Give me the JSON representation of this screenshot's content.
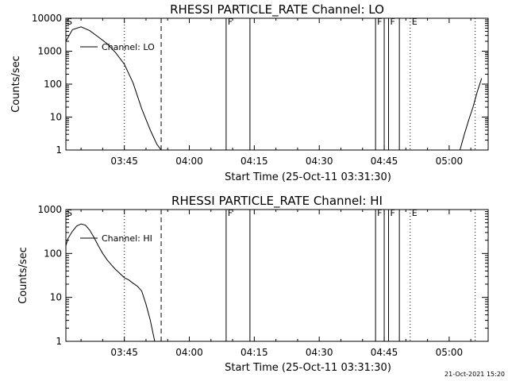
{
  "timestamp": "21-Oct-2021 15:20",
  "chart_data": [
    {
      "type": "line",
      "title": "RHESSI PARTICLE_RATE Channel: LO",
      "xlabel": "Start Time (25-Oct-11 03:31:30)",
      "ylabel": "Counts/sec",
      "yscale": "log",
      "xlim": [
        "03:31:30",
        "05:09:00"
      ],
      "ylim": [
        1,
        10000
      ],
      "x_ticks": [
        "03:45",
        "04:00",
        "04:15",
        "04:30",
        "04:45",
        "05:00"
      ],
      "y_ticks": [
        "1",
        "10",
        "100",
        "1000",
        "10000"
      ],
      "legend": {
        "label": "Channel: LO",
        "position": "top-left"
      },
      "series": [
        {
          "name": "Channel: LO",
          "segments": [
            {
              "x": [
                "03:31:30",
                "03:33:00",
                "03:35:00",
                "03:37:00",
                "03:39:00",
                "03:41:00",
                "03:43:00",
                "03:45:00",
                "03:47:00",
                "03:49:00",
                "03:51:00",
                "03:52:30",
                "03:53:30"
              ],
              "y": [
                2000,
                4500,
                5500,
                4200,
                2700,
                1700,
                900,
                400,
                110,
                18,
                4,
                1.5,
                1
              ]
            },
            {
              "x": [
                "05:02:30",
                "05:03:30",
                "05:04:30",
                "05:05:30",
                "05:06:30",
                "05:07:30"
              ],
              "y": [
                1,
                3,
                8,
                20,
                60,
                150
              ]
            }
          ]
        }
      ],
      "vlines": [
        {
          "time": "03:45:00",
          "style": "dotted",
          "label": ""
        },
        {
          "time": "03:53:30",
          "style": "dashed",
          "label": ""
        },
        {
          "time": "04:08:30",
          "style": "solid",
          "label": "F"
        },
        {
          "time": "04:14:00",
          "style": "solid",
          "label": ""
        },
        {
          "time": "04:43:00",
          "style": "solid",
          "label": "F"
        },
        {
          "time": "04:45:00",
          "style": "solid",
          "label": ""
        },
        {
          "time": "04:46:00",
          "style": "solid",
          "label": "F"
        },
        {
          "time": "04:48:30",
          "style": "solid",
          "label": ""
        },
        {
          "time": "04:51:00",
          "style": "dotted",
          "label": "E"
        },
        {
          "time": "05:06:00",
          "style": "dotted",
          "label": ""
        }
      ],
      "edge_flags": [
        "S"
      ]
    },
    {
      "type": "line",
      "title": "RHESSI PARTICLE_RATE Channel: HI",
      "xlabel": "Start Time (25-Oct-11 03:31:30)",
      "ylabel": "Counts/sec",
      "yscale": "log",
      "xlim": [
        "03:31:30",
        "05:09:00"
      ],
      "ylim": [
        1,
        1000
      ],
      "x_ticks": [
        "03:45",
        "04:00",
        "04:15",
        "04:30",
        "04:45",
        "05:00"
      ],
      "y_ticks": [
        "1",
        "10",
        "100",
        "1000"
      ],
      "legend": {
        "label": "Channel: HI",
        "position": "top-left"
      },
      "series": [
        {
          "name": "Channel: HI",
          "segments": [
            {
              "x": [
                "03:31:30",
                "03:32:00",
                "03:33:00",
                "03:34:00",
                "03:35:00",
                "03:36:00",
                "03:37:00",
                "03:38:00",
                "03:39:00",
                "03:40:00",
                "03:41:00",
                "03:42:00",
                "03:43:00",
                "03:44:00",
                "03:45:00",
                "03:46:00",
                "03:47:00",
                "03:48:00",
                "03:49:00",
                "03:50:00",
                "03:51:00",
                "03:52:00"
              ],
              "y": [
                150,
                220,
                320,
                420,
                470,
                440,
                340,
                230,
                150,
                100,
                72,
                55,
                43,
                35,
                28,
                25,
                21,
                18,
                14,
                7,
                3,
                1
              ]
            }
          ]
        }
      ],
      "vlines": [
        {
          "time": "03:45:00",
          "style": "dotted",
          "label": ""
        },
        {
          "time": "03:53:30",
          "style": "dashed",
          "label": ""
        },
        {
          "time": "04:08:30",
          "style": "solid",
          "label": "F"
        },
        {
          "time": "04:14:00",
          "style": "solid",
          "label": ""
        },
        {
          "time": "04:43:00",
          "style": "solid",
          "label": "F"
        },
        {
          "time": "04:45:00",
          "style": "solid",
          "label": ""
        },
        {
          "time": "04:46:00",
          "style": "solid",
          "label": "F"
        },
        {
          "time": "04:48:30",
          "style": "solid",
          "label": ""
        },
        {
          "time": "04:51:00",
          "style": "dotted",
          "label": "E"
        },
        {
          "time": "05:06:00",
          "style": "dotted",
          "label": ""
        }
      ],
      "edge_flags": [
        "S"
      ]
    }
  ]
}
